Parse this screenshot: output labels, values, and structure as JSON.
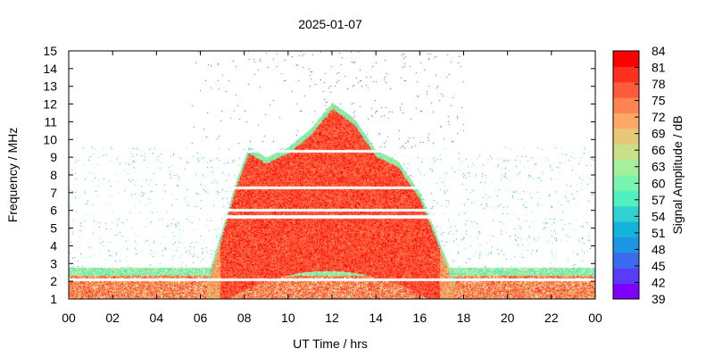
{
  "chart_data": {
    "type": "heatmap",
    "title": "2025-01-07",
    "xlabel": "UT Time / hrs",
    "ylabel": "Frequency / MHz",
    "xlim": [
      0,
      24
    ],
    "ylim": [
      1,
      15
    ],
    "x_tick_labels": [
      "00",
      "02",
      "04",
      "06",
      "08",
      "10",
      "12",
      "14",
      "16",
      "18",
      "20",
      "22",
      "00"
    ],
    "y_tick_labels": [
      "1",
      "2",
      "3",
      "4",
      "5",
      "6",
      "7",
      "8",
      "9",
      "10",
      "11",
      "12",
      "13",
      "14",
      "15"
    ],
    "colorbar": {
      "label": "Signal Amplitude / dB",
      "min": 39,
      "max": 84,
      "tick_labels": [
        "39",
        "42",
        "45",
        "48",
        "51",
        "54",
        "57",
        "60",
        "63",
        "66",
        "69",
        "72",
        "75",
        "78",
        "81",
        "84"
      ],
      "colors": [
        "#8000ff",
        "#5a3cf8",
        "#3b6cf0",
        "#1e96e6",
        "#12b4dc",
        "#2fd2d0",
        "#50f0c0",
        "#7af5b0",
        "#a6f09c",
        "#c8e08a",
        "#e6c878",
        "#ffa866",
        "#ff8452",
        "#ff5a3c",
        "#ff3020",
        "#ff0000"
      ]
    },
    "regions": [
      {
        "name": "daytime band",
        "x": [
          6.2,
          17.8
        ],
        "y": [
          1.5,
          12.2
        ],
        "amplitude_db": "72-84"
      },
      {
        "name": "lower band",
        "x": [
          0,
          24
        ],
        "y": [
          1,
          2.8
        ],
        "amplitude_db": "63-81"
      }
    ]
  }
}
